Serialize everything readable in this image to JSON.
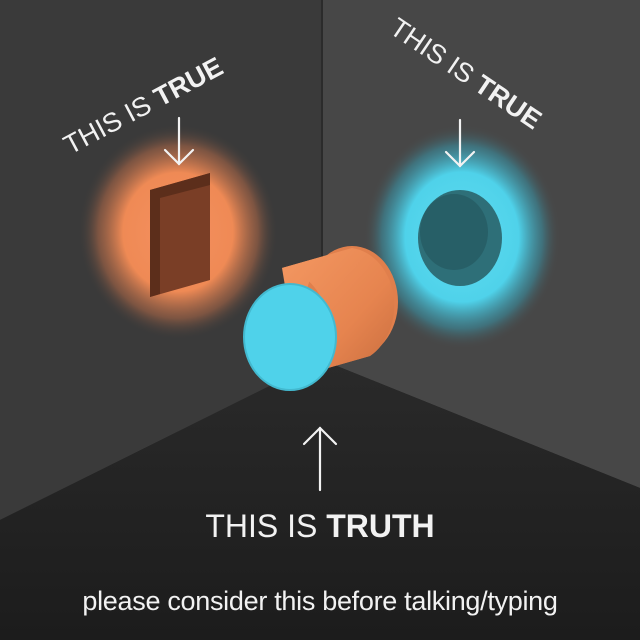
{
  "labels": {
    "left_wall": {
      "prefix": "THIS IS ",
      "emphasis": "TRUE"
    },
    "right_wall": {
      "prefix": "THIS IS ",
      "emphasis": "TRUE"
    },
    "floor": {
      "prefix": "THIS IS ",
      "emphasis": "TRUTH"
    }
  },
  "caption": "please consider this before talking/typing",
  "colors": {
    "orange": "#ef8a55",
    "cyan": "#4fd2ea",
    "left_wall": "#3b3b3b",
    "right_wall": "#4a4a4a",
    "floor": "#222222",
    "text": "#f2f2f2"
  }
}
